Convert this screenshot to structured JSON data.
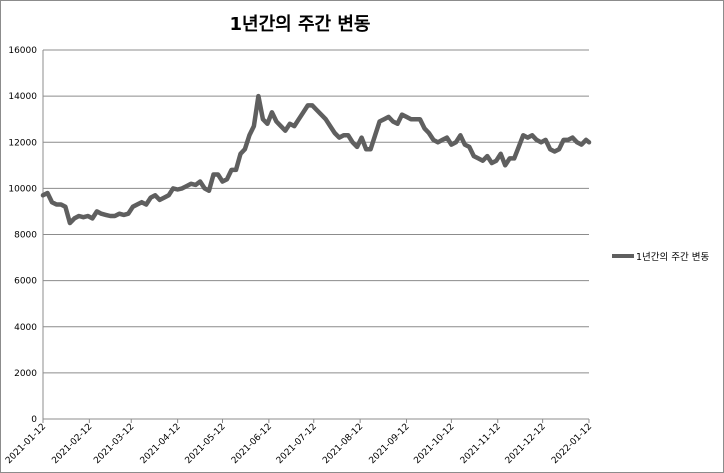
{
  "chart_data": {
    "type": "line",
    "title": "1년간의 주간 변동",
    "xlabel": "",
    "ylabel": "",
    "ylim": [
      0,
      16000
    ],
    "yticks": [
      0,
      2000,
      4000,
      6000,
      8000,
      10000,
      12000,
      14000,
      16000
    ],
    "xticks": [
      "2021-01-12",
      "2021-02-12",
      "2021-03-12",
      "2021-04-12",
      "2021-05-12",
      "2021-06-12",
      "2021-07-12",
      "2021-08-12",
      "2021-09-12",
      "2021-10-12",
      "2021-11-12",
      "2021-12-12",
      "2022-01-12"
    ],
    "grid": true,
    "legend_position": "right",
    "series": [
      {
        "name": "1년간의 주간 변동",
        "color": "#5f5f5f",
        "x": [
          "2021-01-12",
          "2021-01-15",
          "2021-01-18",
          "2021-01-21",
          "2021-01-24",
          "2021-01-27",
          "2021-01-30",
          "2021-02-02",
          "2021-02-05",
          "2021-02-08",
          "2021-02-11",
          "2021-02-14",
          "2021-02-17",
          "2021-02-20",
          "2021-02-23",
          "2021-02-26",
          "2021-03-01",
          "2021-03-04",
          "2021-03-07",
          "2021-03-10",
          "2021-03-13",
          "2021-03-16",
          "2021-03-19",
          "2021-03-22",
          "2021-03-25",
          "2021-03-28",
          "2021-03-31",
          "2021-04-03",
          "2021-04-06",
          "2021-04-09",
          "2021-04-12",
          "2021-04-15",
          "2021-04-18",
          "2021-04-21",
          "2021-04-24",
          "2021-04-27",
          "2021-04-30",
          "2021-05-03",
          "2021-05-06",
          "2021-05-09",
          "2021-05-12",
          "2021-05-15",
          "2021-05-18",
          "2021-05-21",
          "2021-05-24",
          "2021-05-27",
          "2021-05-30",
          "2021-06-02",
          "2021-06-05",
          "2021-06-08",
          "2021-06-11",
          "2021-06-14",
          "2021-06-17",
          "2021-06-20",
          "2021-06-23",
          "2021-06-26",
          "2021-06-29",
          "2021-07-02",
          "2021-07-05",
          "2021-07-08",
          "2021-07-11",
          "2021-07-14",
          "2021-07-17",
          "2021-07-20",
          "2021-07-23",
          "2021-07-26",
          "2021-07-29",
          "2021-08-01",
          "2021-08-04",
          "2021-08-07",
          "2021-08-10",
          "2021-08-13",
          "2021-08-16",
          "2021-08-19",
          "2021-08-22",
          "2021-08-25",
          "2021-08-28",
          "2021-08-31",
          "2021-09-03",
          "2021-09-06",
          "2021-09-09",
          "2021-09-12",
          "2021-09-15",
          "2021-09-18",
          "2021-09-21",
          "2021-09-24",
          "2021-09-27",
          "2021-09-30",
          "2021-10-03",
          "2021-10-06",
          "2021-10-09",
          "2021-10-12",
          "2021-10-15",
          "2021-10-18",
          "2021-10-21",
          "2021-10-24",
          "2021-10-27",
          "2021-10-30",
          "2021-11-02",
          "2021-11-05",
          "2021-11-08",
          "2021-11-11",
          "2021-11-14",
          "2021-11-17",
          "2021-11-20",
          "2021-11-23",
          "2021-11-26",
          "2021-11-29",
          "2021-12-02",
          "2021-12-05",
          "2021-12-08",
          "2021-12-11",
          "2021-12-14",
          "2021-12-17",
          "2021-12-20",
          "2021-12-23",
          "2021-12-26",
          "2021-12-29",
          "2022-01-01",
          "2022-01-04",
          "2022-01-07",
          "2022-01-10",
          "2022-01-12"
        ],
        "values": [
          9700,
          9800,
          9400,
          9300,
          9300,
          9200,
          8500,
          8700,
          8800,
          8750,
          8800,
          8700,
          9000,
          8900,
          8850,
          8800,
          8800,
          8900,
          8850,
          8900,
          9200,
          9300,
          9400,
          9300,
          9600,
          9700,
          9500,
          9600,
          9700,
          10000,
          9950,
          10000,
          10100,
          10200,
          10150,
          10300,
          10000,
          9900,
          10600,
          10600,
          10300,
          10400,
          10800,
          10800,
          11500,
          11700,
          12300,
          12700,
          14000,
          13000,
          12800,
          13300,
          12900,
          12700,
          12500,
          12800,
          12700,
          13000,
          13300,
          13600,
          13600,
          13400,
          13200,
          13000,
          12700,
          12400,
          12200,
          12300,
          12300,
          12000,
          11800,
          12200,
          11700,
          11700,
          12300,
          12900,
          13000,
          13100,
          12900,
          12800,
          13200,
          13100,
          13000,
          13000,
          13000,
          12600,
          12400,
          12100,
          12000,
          12100,
          12200,
          11900,
          12000,
          12300,
          11900,
          11800,
          11400,
          11300,
          11200,
          11400,
          11100,
          11200,
          11500,
          11000,
          11300,
          11300,
          11800,
          12300,
          12200,
          12300,
          12100,
          12000,
          12100,
          11700,
          11600,
          11700,
          12100,
          12100,
          12200,
          12000,
          11900,
          12100,
          12000
        ]
      }
    ]
  }
}
